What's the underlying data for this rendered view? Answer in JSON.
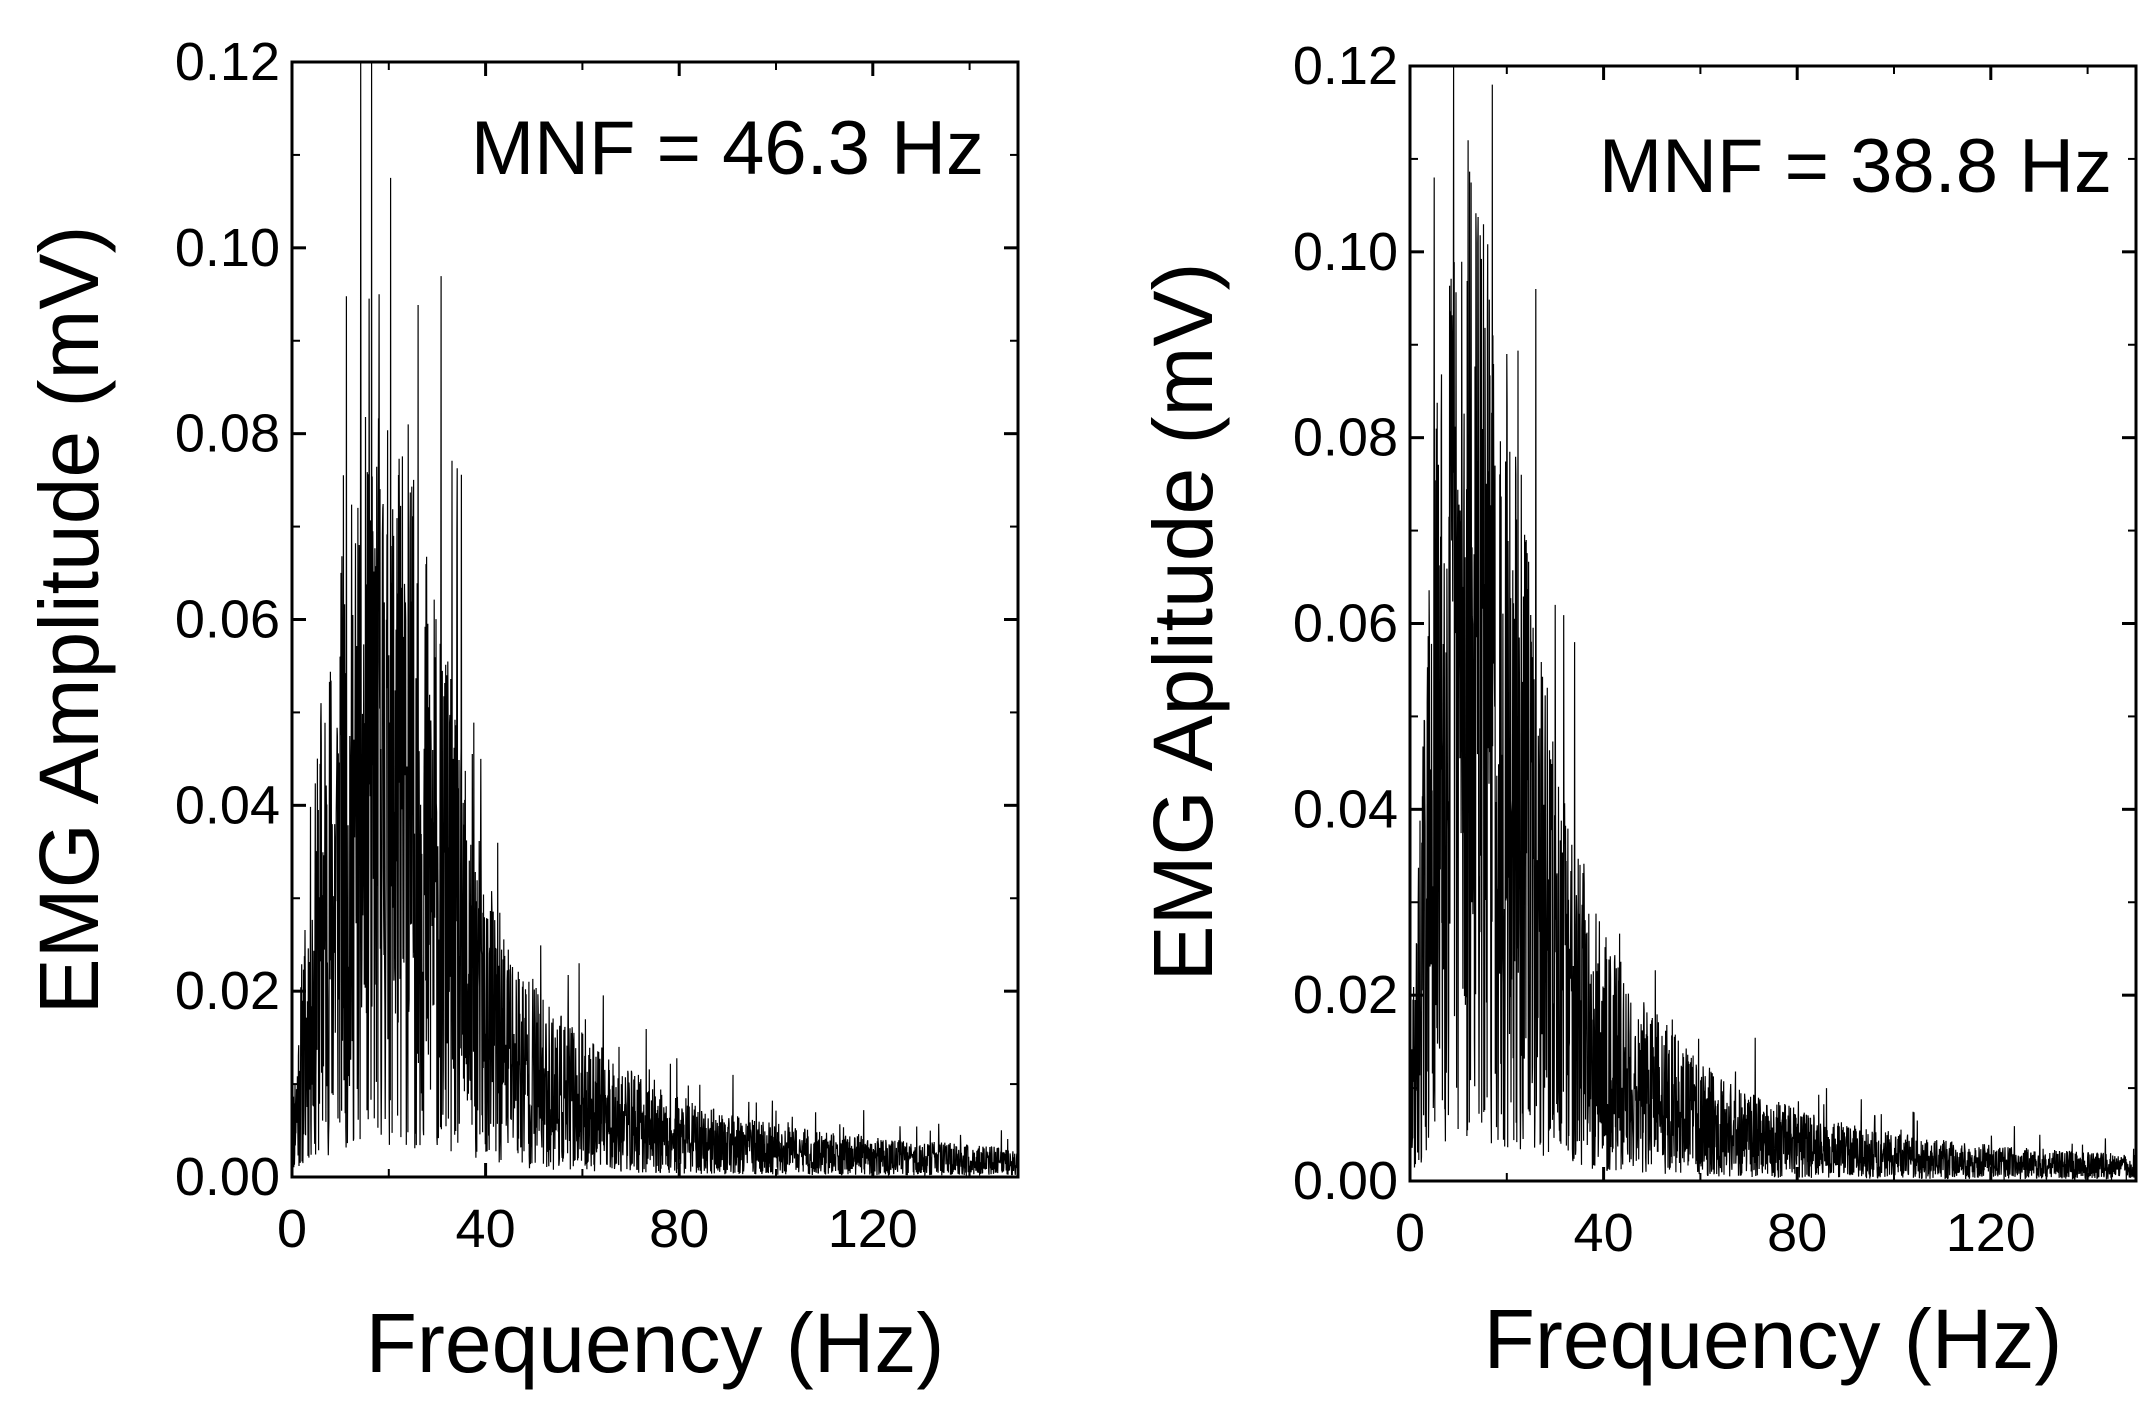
{
  "chart_data": [
    {
      "type": "line",
      "panel": "left",
      "xlabel": "Frequency (Hz)",
      "ylabel": "EMG Amplitude (mV)",
      "annotation": "MNF = 46.3 Hz",
      "xlim": [
        0,
        150
      ],
      "ylim": [
        0,
        0.12
      ],
      "xticks": [
        0,
        40,
        80,
        120
      ],
      "xtick_labels": [
        "0",
        "40",
        "80",
        "120"
      ],
      "yticks": [
        0,
        0.02,
        0.04,
        0.06,
        0.08,
        0.1,
        0.12
      ],
      "ytick_labels": [
        "0.00",
        "0.02",
        "0.04",
        "0.06",
        "0.08",
        "0.10",
        "0.12"
      ],
      "grid": false,
      "color": "#000000",
      "envelope": {
        "x": [
          0,
          2,
          4,
          6,
          8,
          10,
          12,
          14,
          16,
          18,
          20,
          22,
          24,
          26,
          28,
          30,
          32,
          34,
          36,
          38,
          40,
          44,
          48,
          52,
          56,
          60,
          65,
          70,
          75,
          80,
          90,
          100,
          110,
          120,
          130,
          140,
          150
        ],
        "y": [
          0.004,
          0.012,
          0.019,
          0.026,
          0.03,
          0.034,
          0.037,
          0.039,
          0.041,
          0.042,
          0.042,
          0.041,
          0.04,
          0.038,
          0.035,
          0.032,
          0.029,
          0.026,
          0.023,
          0.02,
          0.017,
          0.014,
          0.012,
          0.01,
          0.009,
          0.008,
          0.007,
          0.006,
          0.005,
          0.0045,
          0.0035,
          0.003,
          0.0025,
          0.0022,
          0.002,
          0.0018,
          0.0016
        ]
      },
      "peaks": [
        {
          "x": 6,
          "y": 0.051
        },
        {
          "x": 10,
          "y": 0.056
        },
        {
          "x": 14,
          "y": 0.065
        },
        {
          "x": 16,
          "y": 0.071
        },
        {
          "x": 18,
          "y": 0.095
        },
        {
          "x": 21,
          "y": 0.069
        },
        {
          "x": 24,
          "y": 0.081
        },
        {
          "x": 28,
          "y": 0.059
        },
        {
          "x": 32,
          "y": 0.054
        },
        {
          "x": 39,
          "y": 0.045
        }
      ]
    },
    {
      "type": "line",
      "panel": "right",
      "xlabel": "Frequency (Hz)",
      "ylabel": "EMG Aplitude (mV)",
      "annotation": "MNF = 38.8 Hz",
      "xlim": [
        0,
        150
      ],
      "ylim": [
        0,
        0.12
      ],
      "xticks": [
        0,
        40,
        80,
        120
      ],
      "xtick_labels": [
        "0",
        "40",
        "80",
        "120"
      ],
      "yticks": [
        0,
        0.02,
        0.04,
        0.06,
        0.08,
        0.1,
        0.12
      ],
      "ytick_labels": [
        "0.00",
        "0.02",
        "0.04",
        "0.06",
        "0.08",
        "0.10",
        "0.12"
      ],
      "grid": false,
      "color": "#000000",
      "envelope": {
        "x": [
          0,
          2,
          4,
          6,
          8,
          10,
          12,
          14,
          16,
          18,
          20,
          22,
          24,
          26,
          28,
          30,
          32,
          34,
          36,
          38,
          40,
          44,
          48,
          52,
          56,
          60,
          65,
          70,
          75,
          80,
          90,
          100,
          110,
          120,
          130,
          140,
          150
        ],
        "y": [
          0.006,
          0.02,
          0.034,
          0.046,
          0.052,
          0.055,
          0.056,
          0.055,
          0.052,
          0.048,
          0.044,
          0.04,
          0.036,
          0.032,
          0.028,
          0.025,
          0.022,
          0.02,
          0.018,
          0.016,
          0.014,
          0.012,
          0.01,
          0.009,
          0.008,
          0.007,
          0.006,
          0.005,
          0.0045,
          0.004,
          0.0032,
          0.0027,
          0.0023,
          0.002,
          0.0018,
          0.0016,
          0.0015
        ]
      },
      "peaks": [
        {
          "x": 5,
          "y": 0.108
        },
        {
          "x": 9,
          "y": 0.12
        },
        {
          "x": 12,
          "y": 0.112
        },
        {
          "x": 14,
          "y": 0.101
        },
        {
          "x": 17,
          "y": 0.118
        },
        {
          "x": 20,
          "y": 0.089
        },
        {
          "x": 23,
          "y": 0.076
        },
        {
          "x": 26,
          "y": 0.096
        },
        {
          "x": 30,
          "y": 0.062
        },
        {
          "x": 34,
          "y": 0.058
        }
      ]
    }
  ]
}
